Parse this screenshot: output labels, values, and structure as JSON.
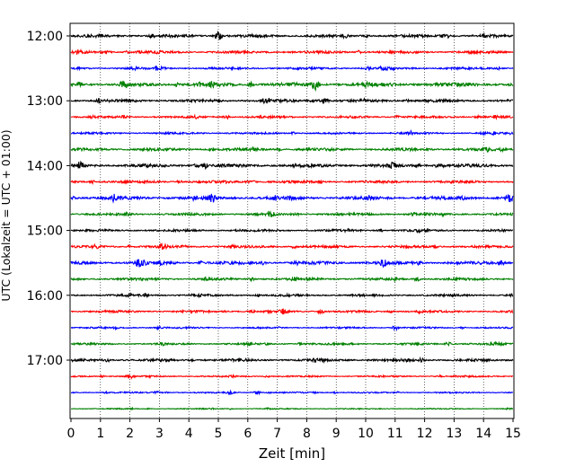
{
  "chart_data": {
    "type": "line",
    "title": "",
    "xlabel": "Zeit  [min]",
    "ylabel": "UTC (Lokalzeit = UTC + 01:00)",
    "xlim": [
      0,
      15
    ],
    "x_ticks": [
      0,
      1,
      2,
      3,
      4,
      5,
      6,
      7,
      8,
      9,
      10,
      11,
      12,
      13,
      14,
      15
    ],
    "x_tick_labels": [
      "0",
      "1",
      "2",
      "3",
      "4",
      "5",
      "6",
      "7",
      "8",
      "9",
      "10",
      "11",
      "12",
      "13",
      "14",
      "15"
    ],
    "y_tick_labels": [
      "12:00",
      "13:00",
      "14:00",
      "15:00",
      "16:00",
      "17:00"
    ],
    "vertical_grid": true,
    "line_start_hour": 12.0,
    "line_interval_minutes": 15,
    "line_count": 24,
    "color_cycle": [
      "#000000",
      "#ff0000",
      "#0000ff",
      "#008000"
    ],
    "series_name_note": "",
    "amplitude_levels": [
      1,
      0.9,
      0.8,
      1.3,
      1,
      0.8,
      0.7,
      1.0,
      1.1,
      0.9,
      1.2,
      0.9,
      0.8,
      0.9,
      1.1,
      0.9,
      0.8,
      0.8,
      0.6,
      0.7,
      0.9,
      0.6,
      0.5,
      0.4
    ],
    "bursts": [
      {
        "line": 0,
        "minute": 5.0,
        "strength": 2.4
      },
      {
        "line": 0,
        "minute": 12.7,
        "strength": 2.0
      },
      {
        "line": 1,
        "minute": 1.2,
        "strength": 1.6
      },
      {
        "line": 2,
        "minute": 10.6,
        "strength": 1.6
      },
      {
        "line": 3,
        "minute": 8.3,
        "strength": 2.4
      },
      {
        "line": 3,
        "minute": 1.8,
        "strength": 1.6
      },
      {
        "line": 4,
        "minute": 6.6,
        "strength": 1.6
      },
      {
        "line": 4,
        "minute": 8.6,
        "strength": 1.6
      },
      {
        "line": 5,
        "minute": 5.3,
        "strength": 1.3
      },
      {
        "line": 8,
        "minute": 0.3,
        "strength": 1.8
      },
      {
        "line": 8,
        "minute": 4.5,
        "strength": 1.8
      },
      {
        "line": 8,
        "minute": 10.9,
        "strength": 1.6
      },
      {
        "line": 10,
        "minute": 1.5,
        "strength": 1.8
      },
      {
        "line": 10,
        "minute": 4.8,
        "strength": 1.8
      },
      {
        "line": 10,
        "minute": 14.9,
        "strength": 2.0
      },
      {
        "line": 13,
        "minute": 3.1,
        "strength": 1.6
      },
      {
        "line": 14,
        "minute": 2.3,
        "strength": 2.0
      },
      {
        "line": 14,
        "minute": 10.6,
        "strength": 1.9
      },
      {
        "line": 14,
        "minute": 14.6,
        "strength": 1.9
      },
      {
        "line": 17,
        "minute": 7.2,
        "strength": 1.6
      },
      {
        "line": 18,
        "minute": 11.0,
        "strength": 1.6
      },
      {
        "line": 19,
        "minute": 12.8,
        "strength": 1.5
      },
      {
        "line": 19,
        "minute": 14.3,
        "strength": 1.5
      },
      {
        "line": 20,
        "minute": 1.2,
        "strength": 1.7
      },
      {
        "line": 21,
        "minute": 2.0,
        "strength": 2.0
      },
      {
        "line": 22,
        "minute": 2.9,
        "strength": 1.6
      },
      {
        "line": 22,
        "minute": 5.4,
        "strength": 1.8
      },
      {
        "line": 22,
        "minute": 6.3,
        "strength": 2.0
      }
    ]
  }
}
